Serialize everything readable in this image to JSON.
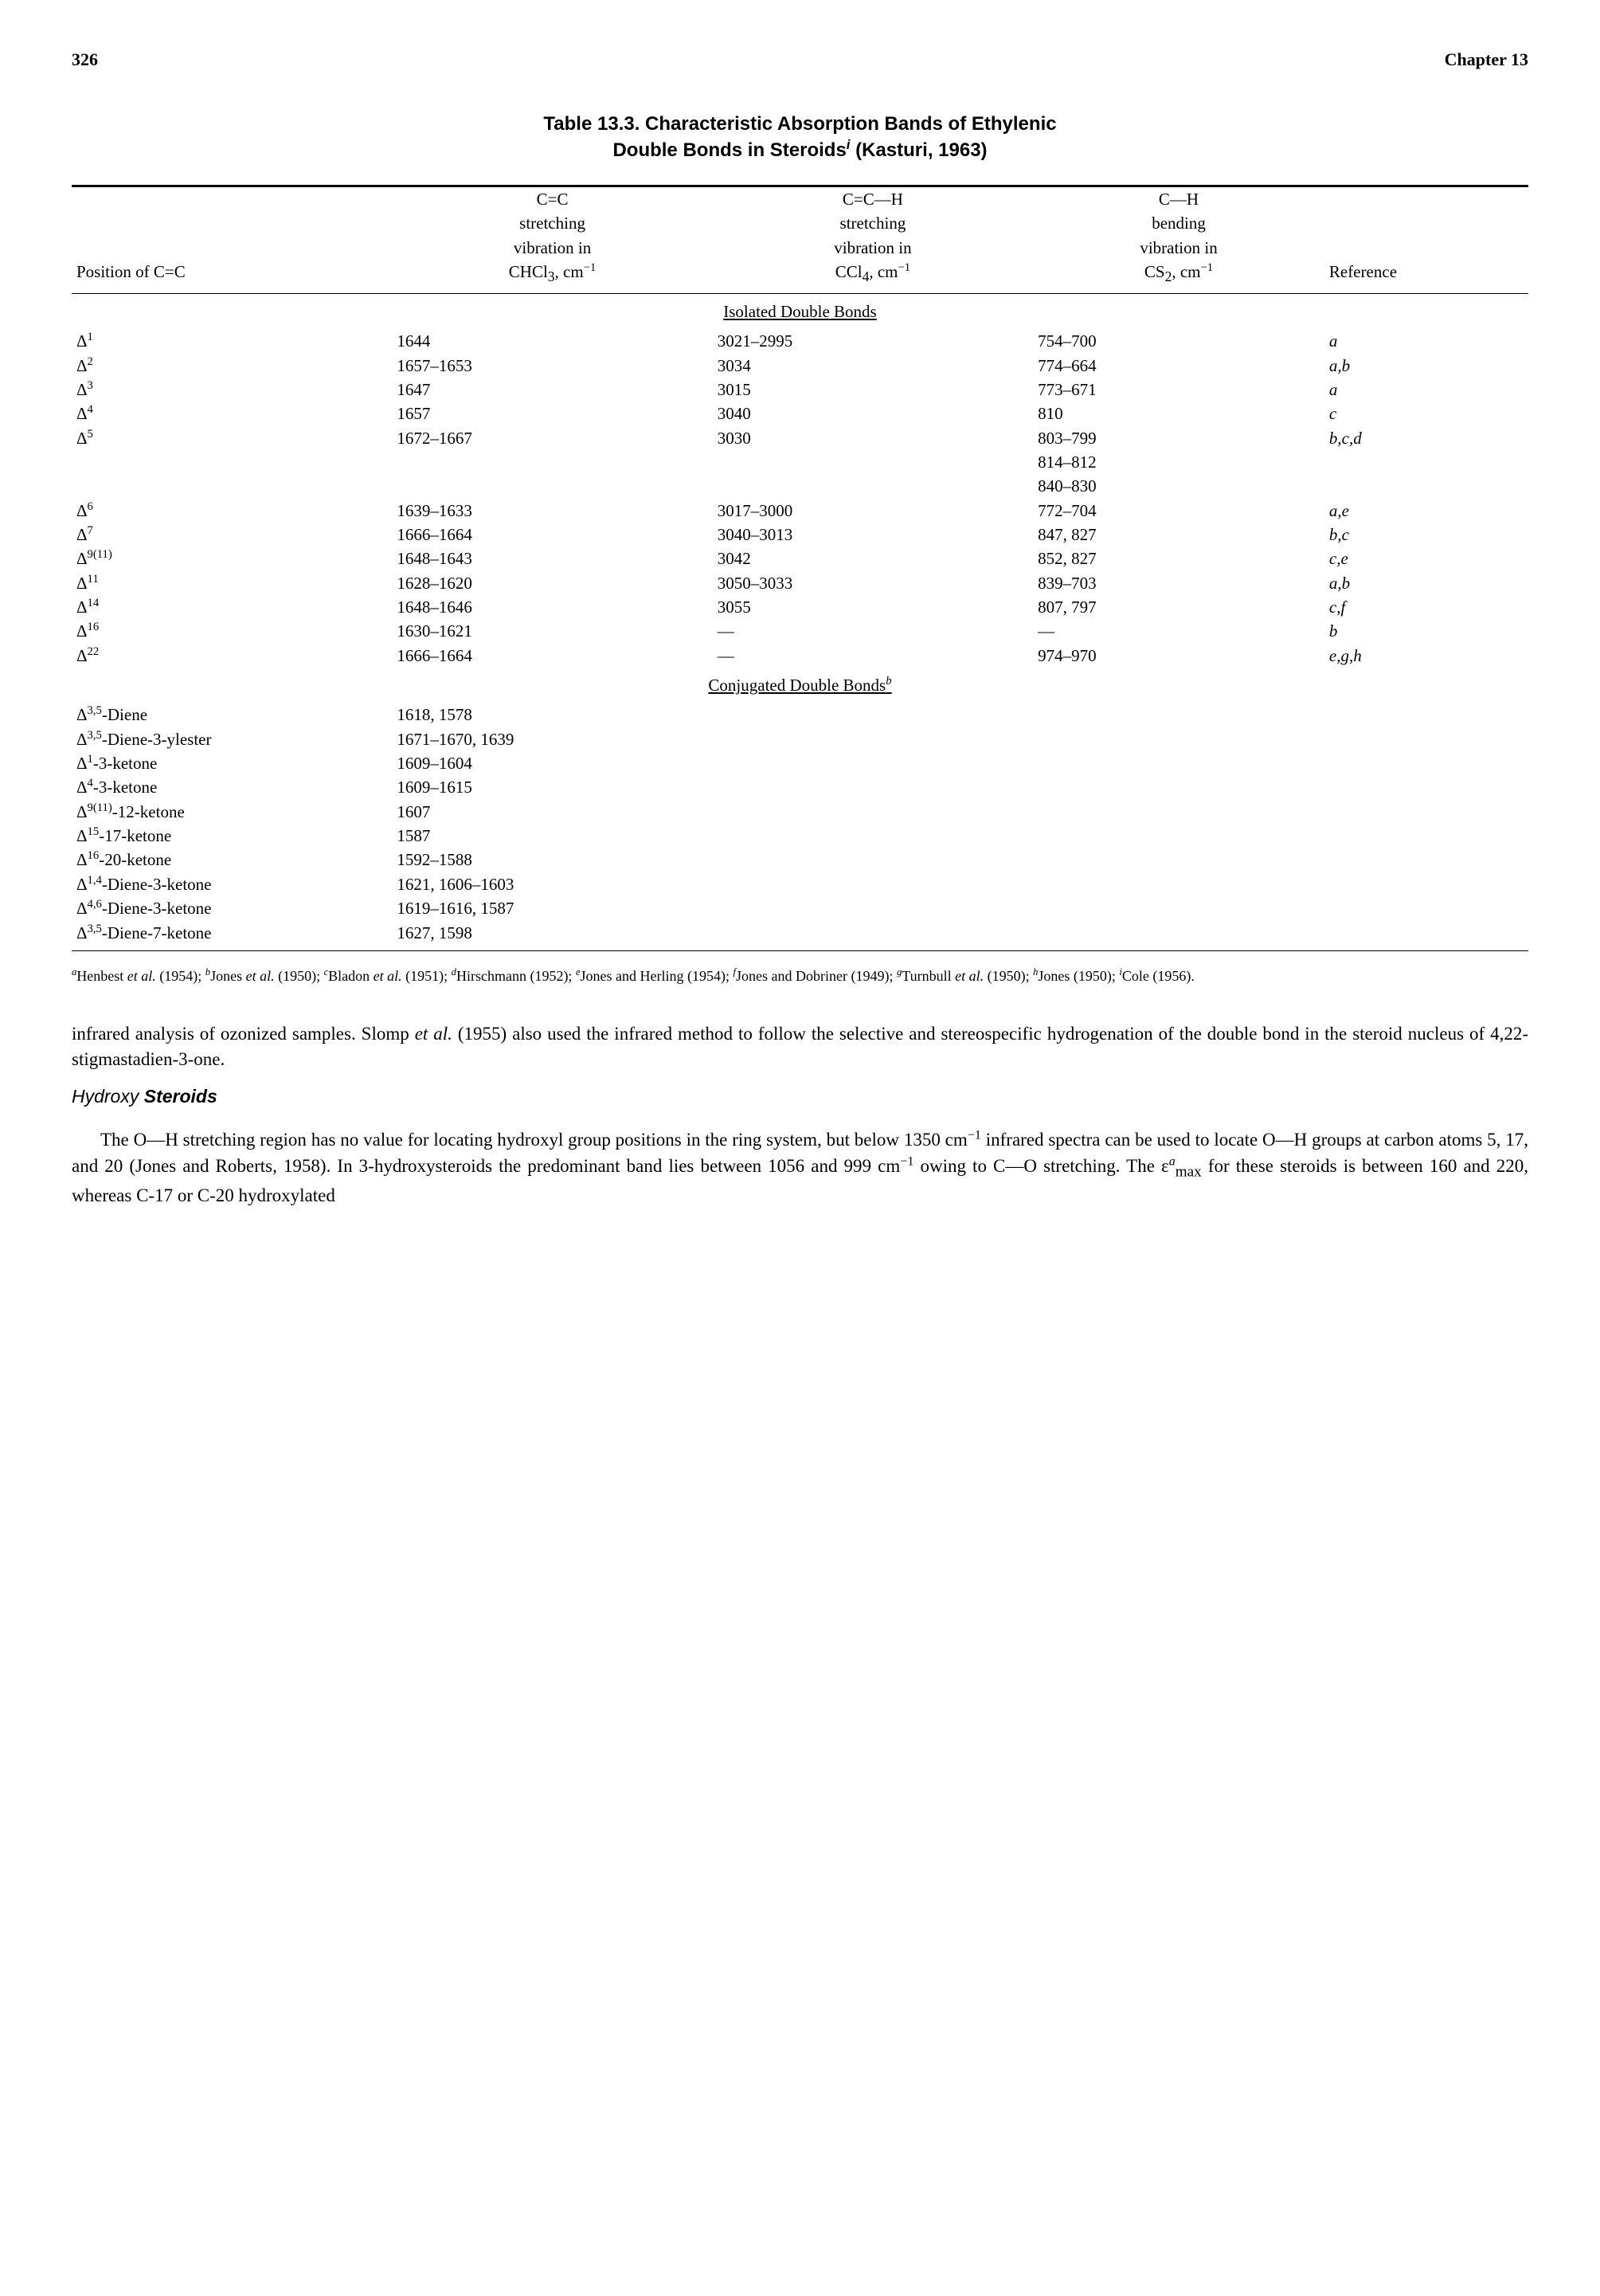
{
  "header": {
    "page_number": "326",
    "chapter": "Chapter 13"
  },
  "table": {
    "caption_line1": "Table 13.3. Characteristic Absorption Bands of Ethylenic",
    "caption_line2_html": "Double Bonds in Steroids<sup><i>i</i></sup> (Kasturi, 1963)",
    "columns": {
      "c0": "Position of C=C",
      "c1_l1": "C=C",
      "c1_l2": "stretching",
      "c1_l3": "vibration in",
      "c1_l4_html": "CHCl<sub>3</sub>, cm<sup>−1</sup>",
      "c2_l1": "C=C—H",
      "c2_l2": "stretching",
      "c2_l3": "vibration in",
      "c2_l4_html": "CCl<sub>4</sub>, cm<sup>−1</sup>",
      "c3_l1": "C—H",
      "c3_l2": "bending",
      "c3_l3": "vibration in",
      "c3_l4_html": "CS<sub>2</sub>, cm<sup>−1</sup>",
      "c4": "Reference"
    },
    "section1": "Isolated Double Bonds",
    "rows_isolated": [
      {
        "pos_html": "Δ<sup>1</sup>",
        "cc": "1644",
        "cch": "3021–2995",
        "ch": "754–700",
        "ref": "a"
      },
      {
        "pos_html": "Δ<sup>2</sup>",
        "cc": "1657–1653",
        "cch": "3034",
        "ch": "774–664",
        "ref": "a,b"
      },
      {
        "pos_html": "Δ<sup>3</sup>",
        "cc": "1647",
        "cch": "3015",
        "ch": "773–671",
        "ref": "a"
      },
      {
        "pos_html": "Δ<sup>4</sup>",
        "cc": "1657",
        "cch": "3040",
        "ch": "810",
        "ref": "c"
      },
      {
        "pos_html": "Δ<sup>5</sup>",
        "cc": "1672–1667",
        "cch": "3030",
        "ch": "803–799",
        "ref": "b,c,d"
      },
      {
        "pos_html": "",
        "cc": "",
        "cch": "",
        "ch": "814–812",
        "ref": ""
      },
      {
        "pos_html": "",
        "cc": "",
        "cch": "",
        "ch": "840–830",
        "ref": ""
      },
      {
        "pos_html": "Δ<sup>6</sup>",
        "cc": "1639–1633",
        "cch": "3017–3000",
        "ch": "772–704",
        "ref": "a,e"
      },
      {
        "pos_html": "Δ<sup>7</sup>",
        "cc": "1666–1664",
        "cch": "3040–3013",
        "ch": "847, 827",
        "ref": "b,c"
      },
      {
        "pos_html": "Δ<sup>9(11)</sup>",
        "cc": "1648–1643",
        "cch": "3042",
        "ch": "852, 827",
        "ref": "c,e"
      },
      {
        "pos_html": "Δ<sup>11</sup>",
        "cc": "1628–1620",
        "cch": "3050–3033",
        "ch": "839–703",
        "ref": "a,b"
      },
      {
        "pos_html": "Δ<sup>14</sup>",
        "cc": "1648–1646",
        "cch": "3055",
        "ch": "807, 797",
        "ref": "c,f"
      },
      {
        "pos_html": "Δ<sup>16</sup>",
        "cc": "1630–1621",
        "cch": "—",
        "ch": "—",
        "ref": "b"
      },
      {
        "pos_html": "Δ<sup>22</sup>",
        "cc": "1666–1664",
        "cch": "—",
        "ch": "974–970",
        "ref": "e,g,h"
      }
    ],
    "section2_html": "Conjugated Double Bonds<sup><i>b</i></sup>",
    "rows_conjugated": [
      {
        "pos_html": "Δ<sup>3,5</sup>-Diene",
        "cc": "1618, 1578"
      },
      {
        "pos_html": "Δ<sup>3,5</sup>-Diene-3-ylester",
        "cc": "1671–1670, 1639"
      },
      {
        "pos_html": "Δ<sup>1</sup>-3-ketone",
        "cc": "1609–1604"
      },
      {
        "pos_html": "Δ<sup>4</sup>-3-ketone",
        "cc": "1609–1615"
      },
      {
        "pos_html": "Δ<sup>9(11)</sup>-12-ketone",
        "cc": "1607"
      },
      {
        "pos_html": "Δ<sup>15</sup>-17-ketone",
        "cc": "1587"
      },
      {
        "pos_html": "Δ<sup>16</sup>-20-ketone",
        "cc": "1592–1588"
      },
      {
        "pos_html": "Δ<sup>1,4</sup>-Diene-3-ketone",
        "cc": "1621, 1606–1603"
      },
      {
        "pos_html": "Δ<sup>4,6</sup>-Diene-3-ketone",
        "cc": "1619–1616, 1587"
      },
      {
        "pos_html": "Δ<sup>3,5</sup>-Diene-7-ketone",
        "cc": "1627, 1598"
      }
    ],
    "footnotes_html": "<sup><i>a</i></sup>Henbest <i>et al.</i> (1954); <sup><i>b</i></sup>Jones <i>et al.</i> (1950); <sup><i>c</i></sup>Bladon <i>et al.</i> (1951); <sup><i>d</i></sup>Hirschmann (1952); <sup><i>e</i></sup>Jones and Herling (1954); <sup><i>f</i></sup>Jones and Dobriner (1949); <sup><i>g</i></sup>Turnbull <i>et al.</i> (1950); <sup><i>h</i></sup>Jones (1950); <sup><i>i</i></sup>Cole (1956)."
  },
  "body": {
    "para1_html": "infrared analysis of ozonized samples. Slomp <i>et al.</i> (1955) also used the infrared method to follow the selective and stereospecific hydrogenation of the double bond in the steroid nucleus of 4,22-stigmastadien-3-one.",
    "subhead_html": "<span>Hydroxy </span><span class=\"part-bold\">Steroids</span>",
    "para2_html": "The O—H stretching region has no value for locating hydroxyl group positions in the ring system, but below 1350 cm<sup>−1</sup> infrared spectra can be used to locate O—H groups at carbon atoms 5, 17, and 20 (Jones and Roberts, 1958). In 3-hydroxysteroids the predominant band lies between 1056 and 999 cm<sup>−1</sup> owing to C—O stretching. The ε<sup><i>a</i></sup><sub>max</sub> for these steroids is between 160 and 220, whereas C-17 or C-20 hydroxylated"
  },
  "style": {
    "col_widths_pct": [
      22,
      22,
      22,
      20,
      14
    ]
  }
}
